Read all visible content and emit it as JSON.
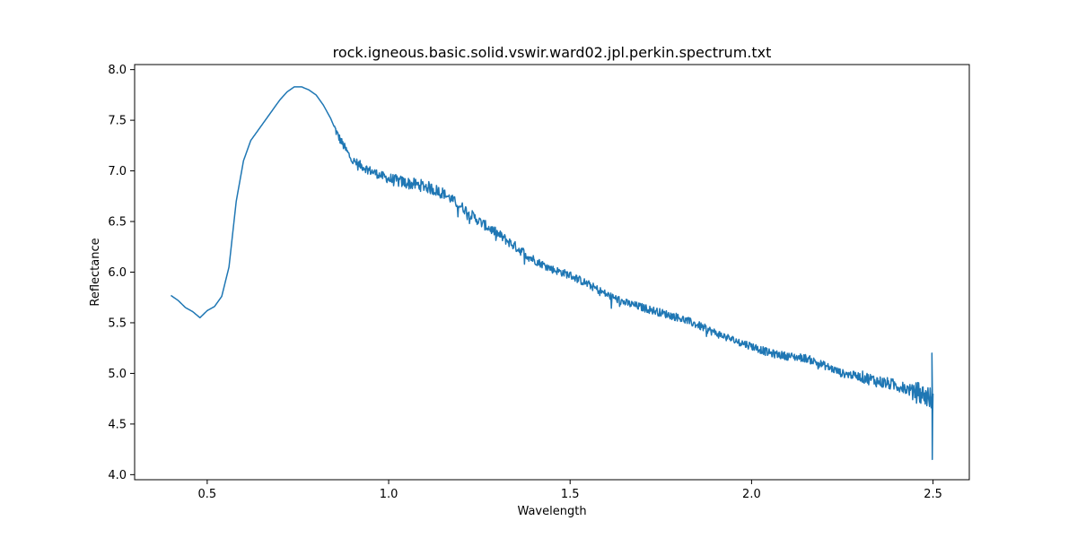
{
  "chart_data": {
    "type": "line",
    "title": "rock.igneous.basic.solid.vswir.ward02.jpl.perkin.spectrum.txt",
    "xlabel": "Wavelength",
    "ylabel": "Reflectance",
    "xlim": [
      0.3,
      2.6
    ],
    "ylim": [
      3.95,
      8.05
    ],
    "xticks": [
      0.5,
      1.0,
      1.5,
      2.0,
      2.5
    ],
    "xtick_labels": [
      "0.5",
      "1.0",
      "1.5",
      "2.0",
      "2.5"
    ],
    "yticks": [
      4.0,
      4.5,
      5.0,
      5.5,
      6.0,
      6.5,
      7.0,
      7.5,
      8.0
    ],
    "ytick_labels": [
      "4.0",
      "4.5",
      "5.0",
      "5.5",
      "6.0",
      "6.5",
      "7.0",
      "7.5",
      "8.0"
    ],
    "grid": false,
    "legend": "none",
    "series": [
      {
        "color": "#1f77b4",
        "x": [
          0.4,
          0.42,
          0.44,
          0.46,
          0.48,
          0.5,
          0.52,
          0.54,
          0.56,
          0.58,
          0.6,
          0.62,
          0.65,
          0.68,
          0.7,
          0.72,
          0.74,
          0.76,
          0.78,
          0.8,
          0.82,
          0.84,
          0.86,
          0.88,
          0.9,
          0.95,
          1.0,
          1.05,
          1.1,
          1.15,
          1.2,
          1.25,
          1.3,
          1.35,
          1.4,
          1.45,
          1.5,
          1.55,
          1.6,
          1.65,
          1.7,
          1.75,
          1.8,
          1.85,
          1.9,
          1.95,
          2.0,
          2.05,
          2.1,
          2.15,
          2.2,
          2.25,
          2.3,
          2.35,
          2.4,
          2.45,
          2.48,
          2.495,
          2.5
        ],
        "y": [
          5.77,
          5.72,
          5.65,
          5.61,
          5.55,
          5.62,
          5.66,
          5.76,
          6.05,
          6.7,
          7.1,
          7.3,
          7.45,
          7.6,
          7.7,
          7.78,
          7.83,
          7.83,
          7.8,
          7.75,
          7.65,
          7.52,
          7.35,
          7.22,
          7.1,
          7.0,
          6.92,
          6.88,
          6.85,
          6.78,
          6.65,
          6.5,
          6.38,
          6.25,
          6.12,
          6.03,
          5.97,
          5.88,
          5.78,
          5.7,
          5.65,
          5.6,
          5.55,
          5.48,
          5.4,
          5.33,
          5.27,
          5.2,
          5.17,
          5.15,
          5.08,
          5.0,
          4.97,
          4.92,
          4.88,
          4.82,
          4.78,
          4.75,
          4.7
        ]
      }
    ]
  }
}
